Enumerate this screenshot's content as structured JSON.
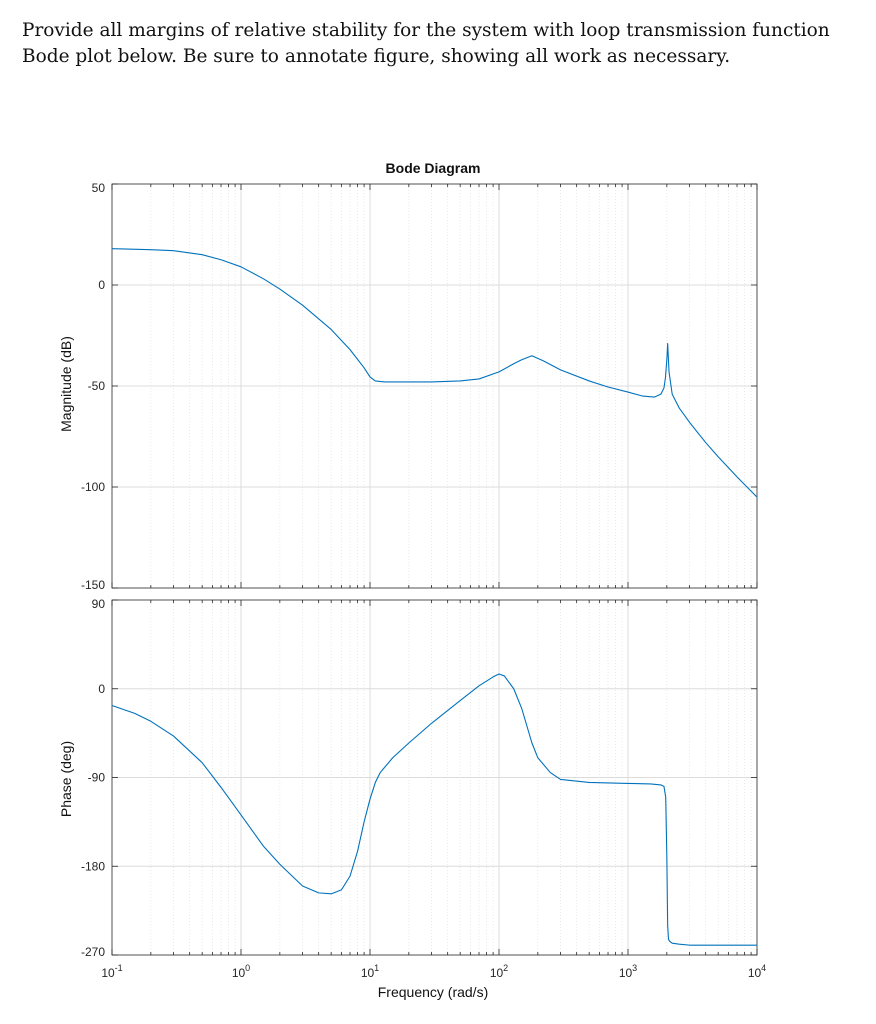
{
  "question": {
    "text": "Provide all margins of relative stability for the system with loop transmission function Bode plot below. Be sure to annotate figure, showing all work as necessary."
  },
  "chart_data": {
    "type": "line",
    "title": "Bode Diagram",
    "xlabel": "Frequency (rad/s)",
    "x_scale": "log",
    "xlim": [
      0.1,
      10000
    ],
    "x_ticks": [
      {
        "base": "10",
        "exp": "-1"
      },
      {
        "base": "10",
        "exp": "0"
      },
      {
        "base": "10",
        "exp": "1"
      },
      {
        "base": "10",
        "exp": "2"
      },
      {
        "base": "10",
        "exp": "3"
      },
      {
        "base": "10",
        "exp": "4"
      }
    ],
    "grid": true,
    "line_color": "#0072bd",
    "magnitude": {
      "ylabel": "Magnitude (dB)",
      "ylim": [
        -150,
        50
      ],
      "y_ticks": [
        "50",
        "0",
        "-50",
        "-100",
        "-150"
      ],
      "x": [
        0.1,
        0.2,
        0.3,
        0.5,
        0.7,
        1,
        1.5,
        2,
        3,
        5,
        7,
        9,
        10,
        11,
        13,
        20,
        30,
        50,
        70,
        100,
        130,
        150,
        180,
        220,
        300,
        500,
        700,
        1000,
        1300,
        1600,
        1800,
        1900,
        1950,
        2000,
        2030,
        2080,
        2200,
        2500,
        3000,
        4000,
        5000,
        7000,
        10000
      ],
      "values": [
        18,
        17.5,
        17,
        15,
        12.5,
        9,
        3,
        -2,
        -10,
        -22,
        -32,
        -41,
        -45.5,
        -47.5,
        -48,
        -48,
        -48,
        -47.5,
        -46.5,
        -43,
        -39,
        -37,
        -35,
        -37.5,
        -42,
        -47.5,
        -50.5,
        -53,
        -55,
        -55.5,
        -54,
        -51,
        -46,
        -37,
        -29,
        -43,
        -54,
        -61,
        -68,
        -78,
        -85,
        -95,
        -105
      ]
    },
    "phase": {
      "ylabel": "Phase (deg)",
      "ylim": [
        -270,
        90
      ],
      "y_ticks": [
        "90",
        "0",
        "-90",
        "-180",
        "-270"
      ],
      "x": [
        0.1,
        0.15,
        0.2,
        0.3,
        0.5,
        0.7,
        1,
        1.5,
        2,
        3,
        4,
        5,
        6,
        7,
        8,
        9,
        10,
        11,
        12,
        15,
        20,
        30,
        50,
        70,
        90,
        100,
        110,
        130,
        150,
        180,
        200,
        250,
        300,
        500,
        1000,
        1500,
        1800,
        1900,
        1960,
        2000,
        2030,
        2060,
        2100,
        2200,
        2500,
        3000,
        5000,
        10000
      ],
      "values": [
        -17,
        -25,
        -33,
        -48,
        -75,
        -100,
        -128,
        -160,
        -178,
        -200,
        -207,
        -208,
        -204,
        -190,
        -165,
        -135,
        -112,
        -95,
        -85,
        -70,
        -55,
        -35,
        -12,
        3,
        12,
        15,
        13,
        0,
        -20,
        -55,
        -70,
        -85,
        -92,
        -95,
        -96,
        -96.5,
        -97.5,
        -99,
        -110,
        -170,
        -240,
        -254,
        -256,
        -258,
        -259,
        -260,
        -260,
        -260
      ]
    }
  }
}
